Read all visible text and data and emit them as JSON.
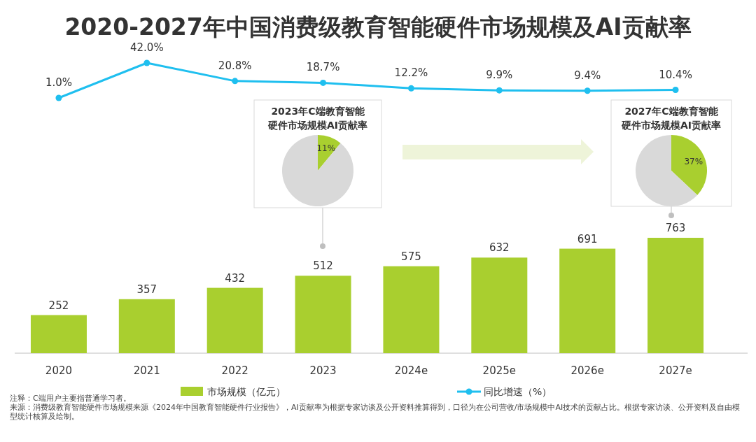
{
  "chart_data": [
    {
      "type": "bar",
      "categories": [
        "2020",
        "2021",
        "2022",
        "2023",
        "2024e",
        "2025e",
        "2026e",
        "2027e"
      ],
      "series": [
        {
          "name": "市场规模（亿元）",
          "color": "#a9cf2f",
          "values": [
            252,
            357,
            432,
            512,
            575,
            632,
            691,
            763
          ]
        }
      ],
      "data_labels": true,
      "legend": "bottom",
      "tick_labels": "x",
      "annotations": [
        "注释：C端用户主要指普通学习者。",
        "来源：消费级教育智能硬件市场规模来源《2024年中国教育智能硬件行业报告》，AI贡献率为根据专家访谈及公开资料推算得到，口径为在公司营收/市场规模中AI技术的贡献占比。根据专家访谈、公开资料及自由模型统计核算及绘制。"
      ]
    },
    {
      "type": "line",
      "title": "2020-2027年中国消费级教育智能硬件市场规模及AI贡献率",
      "categories": [
        null,
        null,
        null,
        null,
        null,
        null,
        null,
        null
      ],
      "series": [
        {
          "name": "同比增速（%）",
          "color": "#1fbfef",
          "values": [
            1.0,
            42.0,
            20.8,
            18.7,
            12.2,
            9.9,
            9.4,
            10.4
          ],
          "value_labels": [
            "1.0%",
            "42.0%",
            "20.8%",
            "18.7%",
            "12.2%",
            "9.9%",
            "9.4%",
            "10.4%"
          ]
        }
      ],
      "marker": "circle",
      "legend": "bottom",
      "tick_labels": false
    },
    {
      "type": "pie",
      "title": "2023年C端教育智能硬件市场规模AI贡献率",
      "categories": [
        null,
        null
      ],
      "values": [
        11,
        89
      ],
      "colors": [
        "#a9cf2f",
        "#d9d9d9"
      ],
      "value_labels": [
        "11%",
        null
      ]
    },
    {
      "type": "pie",
      "title": "2027年C端教育智能硬件市场规模AI贡献率",
      "categories": [
        null,
        null
      ],
      "values": [
        37,
        63
      ],
      "colors": [
        "#a9cf2f",
        "#d9d9d9"
      ],
      "value_labels": [
        "37%",
        null
      ]
    }
  ]
}
